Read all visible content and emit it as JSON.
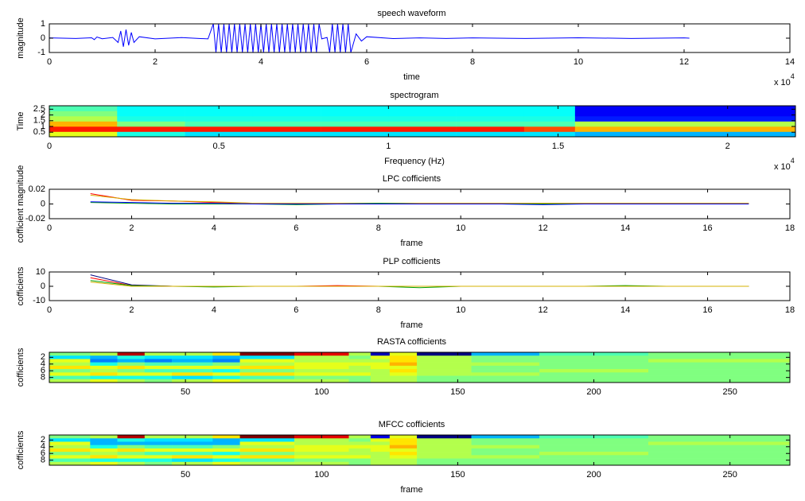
{
  "chart_data": [
    {
      "type": "line",
      "title": "speech waveform",
      "xlabel": "time",
      "ylabel": "magnitude",
      "x_exponent": {
        "text": "x 10",
        "power": "4"
      },
      "xlim": [
        0,
        14
      ],
      "xticks": [
        0,
        2,
        4,
        6,
        8,
        10,
        12,
        14
      ],
      "ylim": [
        -1,
        1
      ],
      "yticks": [
        -1,
        0,
        1
      ],
      "x": [
        0,
        0.5,
        0.8,
        0.85,
        0.9,
        1.0,
        1.2,
        1.3,
        1.35,
        1.4,
        1.45,
        1.5,
        1.55,
        1.6,
        1.7,
        2.0,
        2.5,
        3.0,
        3.1,
        3.15,
        3.2,
        3.25,
        3.3,
        3.35,
        3.4,
        3.45,
        3.5,
        3.55,
        3.6,
        3.65,
        3.7,
        3.75,
        3.8,
        3.85,
        3.9,
        3.95,
        4.0,
        4.05,
        4.1,
        4.15,
        4.2,
        4.25,
        4.3,
        4.35,
        4.4,
        4.45,
        4.5,
        4.55,
        4.6,
        4.65,
        4.7,
        4.75,
        4.8,
        4.85,
        4.9,
        4.95,
        5.0,
        5.05,
        5.1,
        5.15,
        5.25,
        5.3,
        5.35,
        5.4,
        5.45,
        5.5,
        5.55,
        5.6,
        5.65,
        5.7,
        5.8,
        5.9,
        6.0,
        6.5,
        7,
        7.5,
        8,
        9,
        10,
        11,
        12,
        12.1
      ],
      "series": [
        {
          "color": "#0000ff",
          "values": [
            0.02,
            -0.02,
            0.03,
            -0.1,
            0.08,
            -0.04,
            0.05,
            -0.3,
            0.5,
            -0.6,
            0.6,
            -0.5,
            0.4,
            -0.3,
            0.1,
            -0.05,
            0.04,
            -0.05,
            1,
            -1,
            1,
            -1,
            1,
            -1,
            1,
            -1,
            1,
            -1,
            1,
            -1,
            1,
            -1,
            1,
            -1,
            1,
            -1,
            1,
            -1,
            1,
            -1,
            1,
            -1,
            1,
            -1,
            1,
            -1,
            1,
            -1,
            1,
            -1,
            1,
            -1,
            1,
            -1,
            1,
            -1,
            1,
            -1,
            1,
            -0.05,
            0.05,
            -1,
            1,
            -1,
            1,
            -1,
            1,
            -1,
            1,
            -1,
            0.3,
            -0.2,
            0.1,
            -0.03,
            0.02,
            -0.02,
            0.02,
            -0.02,
            0.03,
            -0.02,
            0.02,
            0
          ]
        }
      ]
    },
    {
      "type": "heatmap",
      "title": "spectrogram",
      "xlabel": "Frequency (Hz)",
      "ylabel": "Time",
      "x_exponent": {
        "text": "x 10",
        "power": "4"
      },
      "xlim": [
        0,
        2.2
      ],
      "xticks": [
        0,
        0.5,
        1,
        1.5,
        2
      ],
      "ylim": [
        0.1,
        2.8
      ],
      "yticks": [
        0.5,
        1,
        1.5,
        2,
        2.5
      ],
      "clim": [
        0,
        1
      ],
      "x_edges": [
        0,
        0.2,
        0.4,
        0.6,
        0.8,
        1.0,
        1.2,
        1.4,
        1.55,
        1.8,
        2.0,
        2.2
      ],
      "y_edges": [
        0.1,
        0.55,
        1.0,
        1.45,
        1.9,
        2.35,
        2.8
      ],
      "z": [
        [
          0.6,
          0.4,
          0.35,
          0.35,
          0.35,
          0.35,
          0.35,
          0.35,
          0.3,
          0.3,
          0.3
        ],
        [
          0.85,
          0.85,
          0.85,
          0.85,
          0.85,
          0.85,
          0.85,
          0.8,
          0.7,
          0.7,
          0.7
        ],
        [
          0.7,
          0.5,
          0.45,
          0.45,
          0.45,
          0.45,
          0.45,
          0.45,
          0.55,
          0.55,
          0.55
        ],
        [
          0.55,
          0.4,
          0.4,
          0.4,
          0.4,
          0.4,
          0.4,
          0.4,
          0.15,
          0.15,
          0.15
        ],
        [
          0.5,
          0.38,
          0.38,
          0.38,
          0.38,
          0.38,
          0.38,
          0.38,
          0.12,
          0.12,
          0.12
        ],
        [
          0.45,
          0.38,
          0.38,
          0.38,
          0.38,
          0.38,
          0.38,
          0.38,
          0.12,
          0.12,
          0.12
        ]
      ]
    },
    {
      "type": "line",
      "title": "LPC cofficients",
      "xlabel": "frame",
      "ylabel": "cofficient magnitude",
      "xlim": [
        0,
        18
      ],
      "xticks": [
        0,
        2,
        4,
        6,
        8,
        10,
        12,
        14,
        16,
        18
      ],
      "ylim": [
        -0.02,
        0.02
      ],
      "yticks": [
        -0.02,
        0,
        0.02
      ],
      "x": [
        1,
        2,
        3,
        4,
        5,
        6,
        7,
        8,
        9,
        10,
        11,
        12,
        13,
        14,
        15,
        16,
        17
      ],
      "series": [
        {
          "color": "#ff0000",
          "values": [
            0.014,
            0.005,
            0.004,
            0.002,
            0.001,
            0.001,
            0.001,
            0.001,
            0.001,
            0.001,
            0.001,
            0.001,
            0.001,
            0.001,
            0.001,
            0.001,
            0.001
          ]
        },
        {
          "color": "#d4b000",
          "values": [
            0.012,
            0.006,
            0.004,
            0.003,
            0.001,
            0.001,
            0.001,
            0.001,
            0.001,
            0.001,
            0.001,
            0.001,
            0.001,
            0.001,
            0.001,
            0.001,
            0.001
          ]
        },
        {
          "color": "#00a000",
          "values": [
            0.002,
            0.001,
            0,
            0,
            0,
            -0.001,
            0,
            0.001,
            0,
            0,
            0,
            0,
            0,
            0,
            0,
            0,
            0
          ]
        },
        {
          "color": "#0000ff",
          "values": [
            0.003,
            0.002,
            0.001,
            0.001,
            0,
            0,
            0,
            0,
            0,
            0,
            0,
            -0.001,
            0,
            0,
            0,
            0,
            0
          ]
        }
      ]
    },
    {
      "type": "line",
      "title": "PLP cofficients",
      "xlabel": "frame",
      "ylabel": "cofficients",
      "xlim": [
        0,
        18
      ],
      "xticks": [
        0,
        2,
        4,
        6,
        8,
        10,
        12,
        14,
        16,
        18
      ],
      "ylim": [
        -10,
        10
      ],
      "yticks": [
        -10,
        0,
        10
      ],
      "x": [
        1,
        2,
        3,
        4,
        5,
        6,
        7,
        8,
        9,
        10,
        11,
        12,
        13,
        14,
        15,
        16,
        17
      ],
      "series": [
        {
          "color": "#000080",
          "values": [
            8,
            1,
            0,
            0,
            0,
            0,
            0,
            0,
            0,
            0,
            0,
            0,
            0,
            0,
            0,
            0,
            0
          ]
        },
        {
          "color": "#ff0000",
          "values": [
            6,
            0.5,
            0,
            0,
            0,
            0,
            0.5,
            0,
            0,
            0,
            0,
            0,
            0,
            0,
            0,
            0,
            0
          ]
        },
        {
          "color": "#00a000",
          "values": [
            4,
            0.5,
            0,
            -0.5,
            0,
            0,
            0,
            0,
            -1,
            0,
            0,
            0,
            0,
            0.5,
            0,
            0,
            0
          ]
        },
        {
          "color": "#d4b000",
          "values": [
            3,
            0,
            0,
            0,
            0,
            0,
            0,
            0,
            0,
            0,
            0,
            0,
            0,
            0,
            0,
            0,
            0
          ]
        }
      ]
    },
    {
      "type": "heatmap",
      "title": "RASTA cofficients",
      "ylabel": "cofficients",
      "xlim": [
        0,
        272
      ],
      "xticks": [
        50,
        100,
        150,
        200,
        250
      ],
      "ylim": [
        0.5,
        9.5
      ],
      "yticks": [
        2,
        4,
        6,
        8
      ],
      "y_reversed": true,
      "clim": [
        -1,
        1
      ],
      "x_edges": [
        0,
        15,
        25,
        35,
        45,
        60,
        70,
        90,
        110,
        118,
        125,
        135,
        155,
        180,
        220,
        272
      ],
      "z": [
        [
          0,
          0.1,
          0.9,
          0.1,
          0.1,
          0.3,
          1,
          0.8,
          0.1,
          -0.9,
          0.2,
          -1,
          -0.4,
          -0.1,
          0
        ],
        [
          -0.3,
          -0.4,
          -0.2,
          -0.3,
          -0.3,
          -0.4,
          -0.3,
          0.1,
          0,
          0.2,
          0.3,
          0.1,
          0,
          0,
          0
        ],
        [
          0.2,
          -0.5,
          -0.4,
          -0.5,
          -0.4,
          -0.5,
          0.2,
          0.1,
          0.1,
          0.1,
          0.3,
          0.1,
          0,
          0,
          0.1
        ],
        [
          0.1,
          -0.2,
          0,
          -0.1,
          -0.1,
          0,
          0.1,
          0.2,
          0.2,
          0.2,
          0.4,
          0.1,
          0.1,
          0,
          0
        ],
        [
          0.3,
          0.2,
          0.3,
          0.2,
          0.2,
          0.2,
          0.3,
          0.2,
          0.1,
          0.2,
          0.2,
          0.1,
          0,
          0,
          0
        ],
        [
          0,
          0.1,
          0,
          -0.1,
          -0.1,
          -0.2,
          0,
          0.1,
          0.1,
          0.1,
          0.3,
          0.1,
          0,
          0.1,
          0
        ],
        [
          0.2,
          0.3,
          0.2,
          0.2,
          0.3,
          0.2,
          0.3,
          0.2,
          0.2,
          0.1,
          0.2,
          0.1,
          0.1,
          0,
          0
        ],
        [
          -0.1,
          -0.2,
          -0.2,
          -0.2,
          -0.3,
          -0.2,
          -0.1,
          0,
          0,
          0.1,
          0.1,
          0,
          0,
          0,
          0
        ],
        [
          0.1,
          0.2,
          0.1,
          0,
          0.1,
          0.2,
          0.1,
          0.1,
          0,
          0.1,
          0.1,
          0,
          0,
          0,
          0
        ]
      ]
    },
    {
      "type": "heatmap",
      "title": "MFCC cofficients",
      "xlabel": "frame",
      "ylabel": "cofficients",
      "xlim": [
        0,
        272
      ],
      "xticks": [
        50,
        100,
        150,
        200,
        250
      ],
      "ylim": [
        0.5,
        9.5
      ],
      "yticks": [
        2,
        4,
        6,
        8
      ],
      "y_reversed": true,
      "clim": [
        -1,
        1
      ],
      "x_edges": [
        0,
        15,
        25,
        35,
        45,
        60,
        70,
        90,
        110,
        118,
        125,
        135,
        155,
        180,
        220,
        272
      ],
      "z": [
        [
          0,
          0.1,
          0.9,
          0.1,
          0.1,
          0.3,
          1,
          0.8,
          0.1,
          -0.8,
          0.2,
          -1,
          -0.4,
          -0.1,
          0
        ],
        [
          -0.3,
          -0.4,
          -0.2,
          -0.3,
          -0.3,
          -0.4,
          -0.3,
          0.1,
          0,
          0.2,
          0.3,
          0.1,
          0,
          0,
          0
        ],
        [
          0.2,
          -0.4,
          -0.4,
          -0.4,
          -0.4,
          -0.4,
          0.2,
          0.1,
          0.1,
          0.1,
          0.3,
          0.1,
          0,
          0,
          0.1
        ],
        [
          0.1,
          -0.2,
          0,
          -0.1,
          -0.1,
          0,
          0.1,
          0.2,
          0.2,
          0.2,
          0.4,
          0.1,
          0.1,
          0,
          0
        ],
        [
          0.3,
          0.2,
          0.3,
          0.2,
          0.2,
          0.2,
          0.3,
          0.2,
          0.1,
          0.2,
          0.2,
          0.1,
          0,
          0,
          0
        ],
        [
          0,
          0.1,
          0,
          -0.1,
          -0.1,
          -0.2,
          0,
          0.1,
          0.1,
          0.1,
          0.3,
          0.1,
          0,
          0.1,
          0
        ],
        [
          0.2,
          0.3,
          0.2,
          0.2,
          0.3,
          0.2,
          0.3,
          0.2,
          0.2,
          0.1,
          0.2,
          0.1,
          0.1,
          0,
          0
        ],
        [
          -0.1,
          -0.2,
          -0.2,
          -0.2,
          -0.3,
          -0.2,
          -0.1,
          0,
          0,
          0.1,
          0.1,
          0,
          0,
          0,
          0
        ],
        [
          0.1,
          0.2,
          0.1,
          0,
          0.1,
          0.2,
          0.1,
          0.1,
          0,
          0.1,
          0.1,
          0,
          0,
          0,
          0
        ]
      ]
    }
  ]
}
